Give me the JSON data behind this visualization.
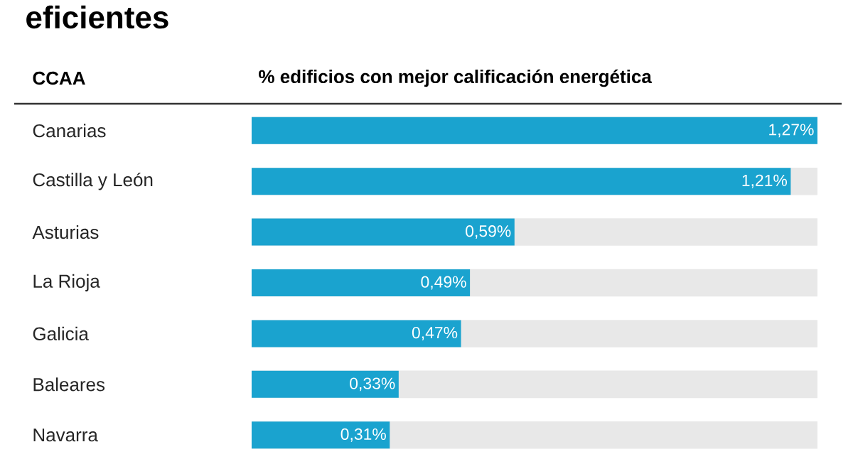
{
  "chart_data": {
    "type": "bar",
    "orientation": "horizontal",
    "title": "eficientes",
    "xlabel": "% edificios con mejor calificación energética",
    "ylabel": "CCAA",
    "categories": [
      "Canarias",
      "Castilla y León",
      "Asturias",
      "La Rioja",
      "Galicia",
      "Baleares",
      "Navarra"
    ],
    "values": [
      1.27,
      1.21,
      0.59,
      0.49,
      0.47,
      0.33,
      0.31
    ],
    "value_labels": [
      "1,27%",
      "1,21%",
      "0,59%",
      "0,49%",
      "0,47%",
      "0,33%",
      "0,31%"
    ],
    "color": "#1aa3cf",
    "xlim": [
      0,
      1.27
    ]
  }
}
